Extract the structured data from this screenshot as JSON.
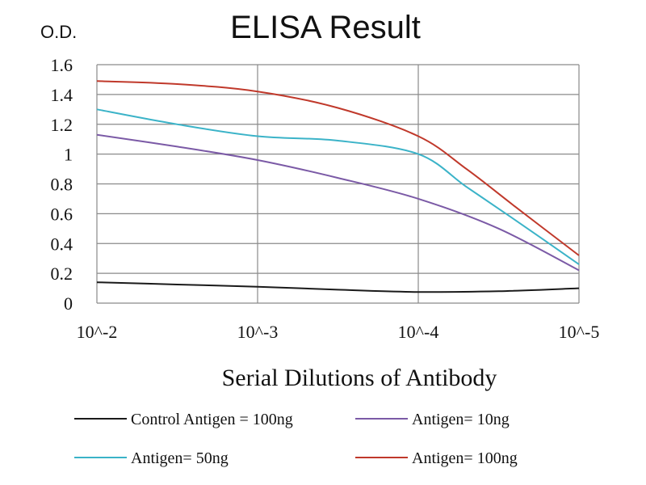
{
  "chart_data": {
    "type": "line",
    "title": "ELISA Result",
    "ylabel": "O.D.",
    "xlabel": "Serial Dilutions  of Antibody",
    "categories": [
      "10^-2",
      "10^-3",
      "10^-4",
      "10^-5"
    ],
    "ylim": [
      0,
      1.6
    ],
    "yticks": [
      "0",
      "0.2",
      "0.4",
      "0.6",
      "0.8",
      "1",
      "1.2",
      "1.4",
      "1.6"
    ],
    "grid": true,
    "legend_position": "bottom",
    "series": [
      {
        "name": "Control Antigen = 100ng",
        "color": "#1a1a1a",
        "x": [
          0,
          0.5,
          1,
          1.5,
          2,
          2.5,
          3
        ],
        "values": [
          0.14,
          0.125,
          0.11,
          0.09,
          0.075,
          0.08,
          0.1
        ]
      },
      {
        "name": "Antigen= 10ng",
        "color": "#7b5aa6",
        "x": [
          0,
          0.5,
          1,
          1.5,
          2,
          2.5,
          3
        ],
        "values": [
          1.13,
          1.05,
          0.96,
          0.84,
          0.7,
          0.5,
          0.22
        ]
      },
      {
        "name": "Antigen= 50ng",
        "color": "#3bb3c8",
        "x": [
          0,
          0.5,
          1,
          1.5,
          2,
          2.3,
          2.6,
          3
        ],
        "values": [
          1.3,
          1.2,
          1.12,
          1.09,
          1.0,
          0.78,
          0.56,
          0.26
        ]
      },
      {
        "name": "Antigen= 100ng",
        "color": "#c0392b",
        "x": [
          0,
          0.5,
          1,
          1.5,
          2,
          2.3,
          2.6,
          3
        ],
        "values": [
          1.49,
          1.47,
          1.42,
          1.31,
          1.12,
          0.9,
          0.65,
          0.32
        ]
      }
    ]
  }
}
